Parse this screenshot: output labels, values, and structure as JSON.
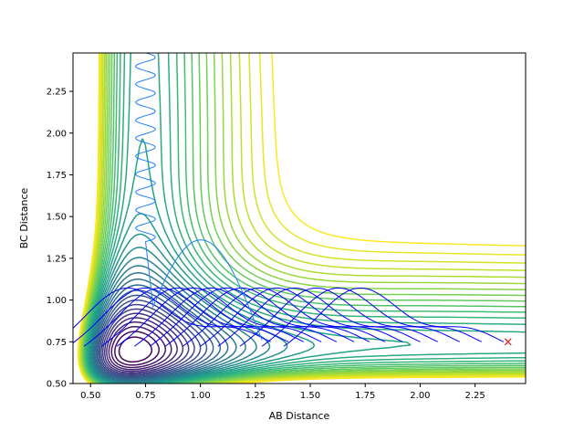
{
  "chart_data": {
    "type": "contour",
    "xlabel": "AB Distance",
    "ylabel": "BC Distance",
    "xlim": [
      0.42,
      2.48
    ],
    "ylim": [
      0.5,
      2.48
    ],
    "grid": false,
    "x_ticks": [
      "0.50",
      "0.75",
      "1.00",
      "1.25",
      "1.50",
      "1.75",
      "2.00",
      "2.25"
    ],
    "y_ticks": [
      "0.50",
      "0.75",
      "1.00",
      "1.25",
      "1.50",
      "1.75",
      "2.00",
      "2.25"
    ],
    "colormap": "viridis",
    "marker": {
      "label": "x",
      "x": 2.4,
      "y": 0.75,
      "color": "#e31a1c"
    },
    "trajectory_colors": [
      "#0000ff",
      "#1f3cff",
      "#2080ff",
      "#1fa0ff"
    ]
  }
}
